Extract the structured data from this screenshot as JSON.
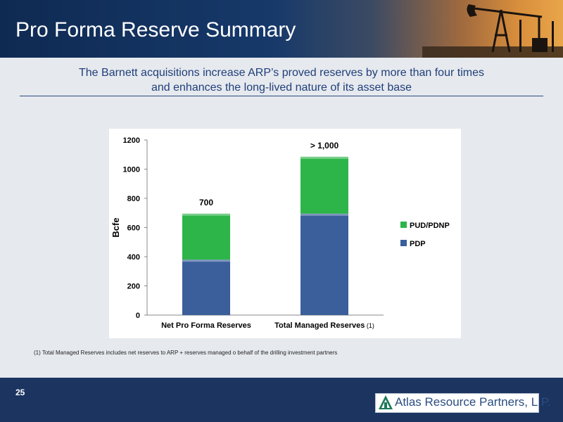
{
  "header": {
    "title": "Pro Forma Reserve Summary"
  },
  "subtitle": {
    "line1": "The Barnett acquisitions increase ARP’s proved reserves by more than four times",
    "line2": "and enhances the long-lived nature of its asset base"
  },
  "footnote": "(1) Total Managed Reserves includes net reserves to ARP + reserves managed o behalf of the drilling investment partners",
  "footer": {
    "page_number": "25",
    "logo_text": "Atlas Resource Partners, L.P."
  },
  "colors": {
    "header_blue": "#0f2a52",
    "pud_green": "#2db54a",
    "pdp_blue": "#3a5f9a",
    "subtitle_blue": "#1f3f7a"
  },
  "icons": {
    "header_art": "oil-pumpjack-icon",
    "logo": "atlas-logo-icon"
  },
  "chart_data": {
    "type": "bar",
    "stacked": true,
    "categories": [
      "Net Pro Forma Reserves",
      "Total Managed Reserves"
    ],
    "category_notes": [
      "",
      "(1)"
    ],
    "series": [
      {
        "name": "PDP",
        "values": [
          380,
          695
        ],
        "color": "#3a5f9a"
      },
      {
        "name": "PUD/PDNP",
        "values": [
          315,
          390
        ],
        "color": "#2db54a"
      }
    ],
    "totals_labels": [
      "700",
      "> 1,000"
    ],
    "ylabel": "Bcfe",
    "xlabel": "",
    "ylim": [
      0,
      1200
    ],
    "yticks": [
      0,
      200,
      400,
      600,
      800,
      1000,
      1200
    ],
    "legend": [
      "PUD/PDNP",
      "PDP"
    ],
    "legend_position": "right",
    "grid": false
  }
}
